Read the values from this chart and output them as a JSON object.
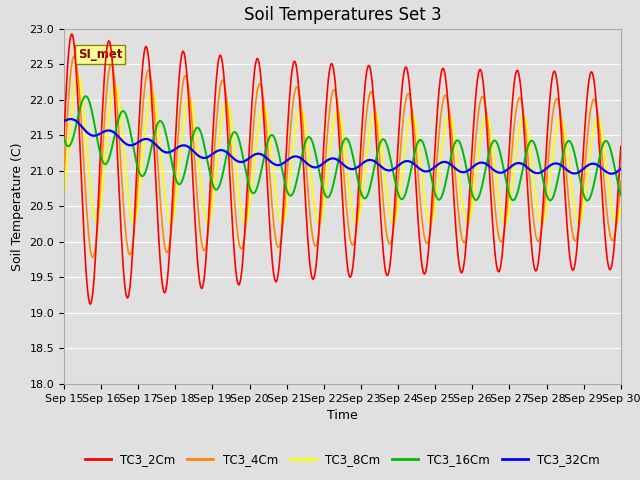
{
  "title": "Soil Temperatures Set 3",
  "xlabel": "Time",
  "ylabel": "Soil Temperature (C)",
  "ylim": [
    18.0,
    23.0
  ],
  "yticks": [
    18.0,
    18.5,
    19.0,
    19.5,
    20.0,
    20.5,
    21.0,
    21.5,
    22.0,
    22.5,
    23.0
  ],
  "xtick_labels": [
    "Sep 15",
    "Sep 16",
    "Sep 17",
    "Sep 18",
    "Sep 19",
    "Sep 20",
    "Sep 21",
    "Sep 22",
    "Sep 23",
    "Sep 24",
    "Sep 25",
    "Sep 26",
    "Sep 27",
    "Sep 28",
    "Sep 29",
    "Sep 30"
  ],
  "series_colors": {
    "TC3_2Cm": "#FF0000",
    "TC3_4Cm": "#FF8800",
    "TC3_8Cm": "#FFFF00",
    "TC3_16Cm": "#00BB00",
    "TC3_32Cm": "#0000FF"
  },
  "annotation_text": "SI_met",
  "annotation_color": "#880000",
  "annotation_bg": "#FFFF99",
  "annotation_border": "#888800",
  "background_color": "#E0E0E0",
  "plot_bg_color": "#E0E0E0",
  "grid_color": "#FFFFFF",
  "title_fontsize": 12,
  "axis_label_fontsize": 9,
  "tick_fontsize": 8
}
